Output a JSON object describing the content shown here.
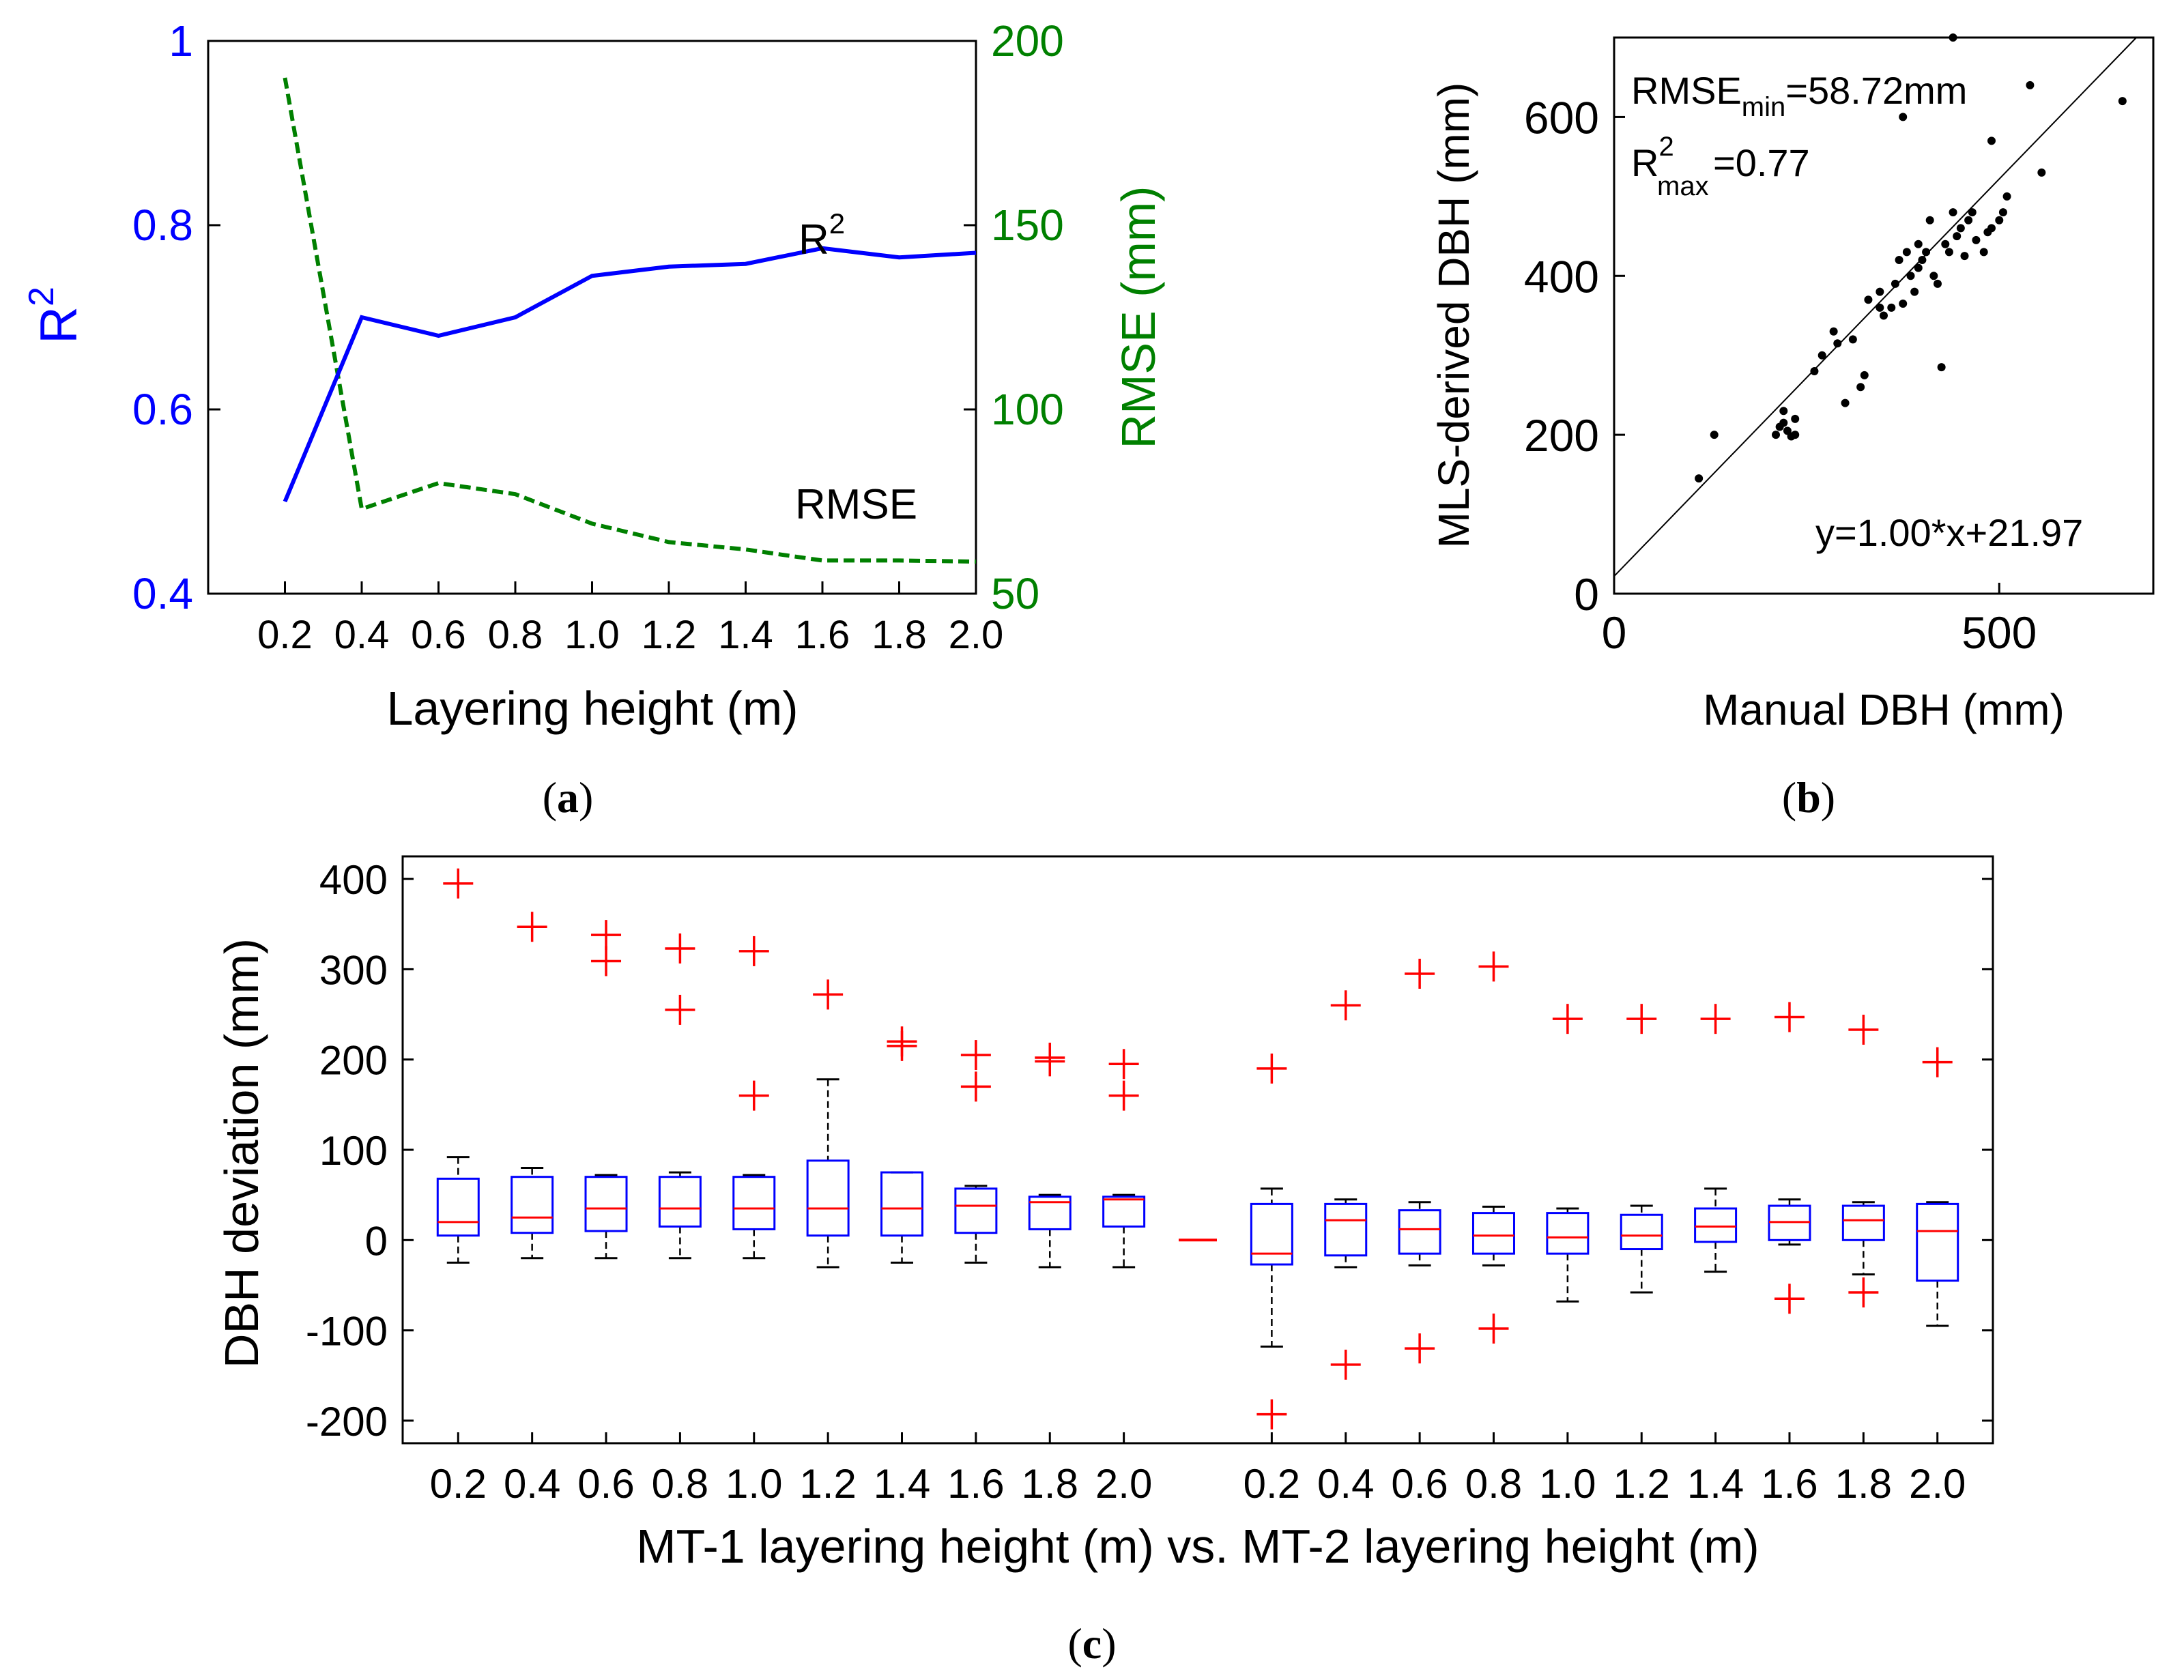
{
  "chart_data": [
    {
      "id": "a",
      "type": "line",
      "panel_label": "a",
      "xlabel": "Layering height (m)",
      "x_ticks": [
        "0.2",
        "0.4",
        "0.6",
        "0.8",
        "1.0",
        "1.2",
        "1.4",
        "1.6",
        "1.8",
        "2.0"
      ],
      "x": [
        0.2,
        0.4,
        0.6,
        0.8,
        1.0,
        1.2,
        1.4,
        1.6,
        1.8,
        2.0
      ],
      "xlim": [
        0.0,
        2.0
      ],
      "ylabel_left": "R",
      "ylabel_left_sup": "2",
      "ylim_left": [
        0.4,
        1.0
      ],
      "yticks_left": [
        "0.4",
        "0.6",
        "0.8",
        "1"
      ],
      "ylabel_right": "RMSE (mm)",
      "ylim_right": [
        50,
        200
      ],
      "yticks_right": [
        "50",
        "100",
        "150",
        "200"
      ],
      "colors": {
        "r2": "#0000ff",
        "rmse": "#008000"
      },
      "series": [
        {
          "name": "R2",
          "label": "R",
          "label_sup": "2",
          "axis": "left",
          "style": "solid",
          "values": [
            0.5,
            0.7,
            0.68,
            0.7,
            0.745,
            0.755,
            0.758,
            0.775,
            0.765,
            0.77
          ]
        },
        {
          "name": "RMSE",
          "label": "RMSE",
          "axis": "right",
          "style": "dashed",
          "values": [
            190,
            73,
            80,
            77,
            69,
            64,
            62,
            59,
            59,
            58.7
          ]
        }
      ]
    },
    {
      "id": "b",
      "type": "scatter",
      "panel_label": "b",
      "xlabel": "Manual DBH (mm)",
      "ylabel": "MLS-derived DBH (mm)",
      "xlim": [
        0,
        700
      ],
      "ylim": [
        0,
        700
      ],
      "x_ticks": [
        "0",
        "500"
      ],
      "y_ticks": [
        "0",
        "200",
        "400",
        "600"
      ],
      "annotation_rmse_main": "RMSE",
      "annotation_rmse_sub": "min",
      "annotation_rmse_value": "=58.72mm",
      "annotation_r2_main": "R",
      "annotation_r2_sup": "2",
      "annotation_r2_sub": "max",
      "annotation_r2_value": "=0.77",
      "equation": "y=1.00*x+21.97",
      "fit_line": {
        "slope": 1.0,
        "intercept": 21.97
      },
      "points": [
        [
          110,
          145
        ],
        [
          130,
          200
        ],
        [
          210,
          200
        ],
        [
          215,
          210
        ],
        [
          220,
          215
        ],
        [
          225,
          205
        ],
        [
          230,
          198
        ],
        [
          235,
          200
        ],
        [
          220,
          230
        ],
        [
          235,
          220
        ],
        [
          260,
          280
        ],
        [
          270,
          300
        ],
        [
          285,
          330
        ],
        [
          300,
          240
        ],
        [
          310,
          320
        ],
        [
          320,
          260
        ],
        [
          325,
          275
        ],
        [
          330,
          370
        ],
        [
          345,
          380
        ],
        [
          350,
          350
        ],
        [
          360,
          360
        ],
        [
          365,
          390
        ],
        [
          370,
          420
        ],
        [
          375,
          365
        ],
        [
          380,
          430
        ],
        [
          385,
          400
        ],
        [
          390,
          380
        ],
        [
          395,
          410
        ],
        [
          400,
          420
        ],
        [
          405,
          430
        ],
        [
          410,
          470
        ],
        [
          415,
          400
        ],
        [
          420,
          390
        ],
        [
          425,
          285
        ],
        [
          430,
          440
        ],
        [
          435,
          430
        ],
        [
          440,
          480
        ],
        [
          445,
          450
        ],
        [
          450,
          460
        ],
        [
          455,
          425
        ],
        [
          460,
          470
        ],
        [
          465,
          480
        ],
        [
          470,
          445
        ],
        [
          480,
          430
        ],
        [
          485,
          455
        ],
        [
          490,
          460
        ],
        [
          500,
          470
        ],
        [
          505,
          480
        ],
        [
          375,
          600
        ],
        [
          440,
          700
        ],
        [
          490,
          570
        ],
        [
          540,
          640
        ],
        [
          555,
          530
        ],
        [
          660,
          620
        ],
        [
          510,
          500
        ],
        [
          395,
          440
        ],
        [
          345,
          360
        ],
        [
          290,
          315
        ]
      ]
    },
    {
      "id": "c",
      "type": "box",
      "panel_label": "c",
      "xlabel": "MT-1 layering height (m) vs. MT-2 layering height (m)",
      "ylabel": "DBH deviation (mm)",
      "ylim": [
        -225,
        425
      ],
      "y_ticks": [
        "-200",
        "-100",
        "0",
        "100",
        "200",
        "300",
        "400"
      ],
      "x_ticks": [
        "0.2",
        "0.4",
        "0.6",
        "0.8",
        "1.0",
        "1.2",
        "1.4",
        "1.6",
        "1.8",
        "2.0",
        "0.2",
        "0.4",
        "0.6",
        "0.8",
        "1.0",
        "1.2",
        "1.4",
        "1.6",
        "1.8",
        "2.0"
      ],
      "separator_value": 0,
      "colors": {
        "box": "#0000ff",
        "median": "#ff0000",
        "whisker": "#000000",
        "outlier": "#ff0000"
      },
      "group1": [
        {
          "category": "0.2",
          "low": -25,
          "q1": 5,
          "median": 20,
          "q3": 68,
          "high": 92,
          "outliers": [
            395
          ]
        },
        {
          "category": "0.4",
          "low": -20,
          "q1": 8,
          "median": 25,
          "q3": 70,
          "high": 80,
          "outliers": [
            347
          ]
        },
        {
          "category": "0.6",
          "low": -20,
          "q1": 10,
          "median": 35,
          "q3": 70,
          "high": 72,
          "outliers": [
            338,
            309
          ]
        },
        {
          "category": "0.8",
          "low": -20,
          "q1": 15,
          "median": 35,
          "q3": 70,
          "high": 75,
          "outliers": [
            323,
            255
          ]
        },
        {
          "category": "1.0",
          "low": -20,
          "q1": 12,
          "median": 35,
          "q3": 70,
          "high": 72,
          "outliers": [
            320,
            160
          ]
        },
        {
          "category": "1.2",
          "low": -30,
          "q1": 5,
          "median": 35,
          "q3": 88,
          "high": 178,
          "outliers": [
            272
          ]
        },
        {
          "category": "1.4",
          "low": -25,
          "q1": 5,
          "median": 35,
          "q3": 75,
          "high": 75,
          "outliers": [
            220,
            215
          ]
        },
        {
          "category": "1.6",
          "low": -25,
          "q1": 8,
          "median": 38,
          "q3": 57,
          "high": 60,
          "outliers": [
            205,
            170
          ]
        },
        {
          "category": "1.8",
          "low": -30,
          "q1": 12,
          "median": 42,
          "q3": 48,
          "high": 50,
          "outliers": [
            202,
            198
          ]
        },
        {
          "category": "2.0",
          "low": -30,
          "q1": 15,
          "median": 45,
          "q3": 48,
          "high": 50,
          "outliers": [
            195,
            160
          ]
        }
      ],
      "group2": [
        {
          "category": "0.2",
          "low": -118,
          "q1": -27,
          "median": -15,
          "q3": 40,
          "high": 57,
          "outliers": [
            190,
            -193
          ]
        },
        {
          "category": "0.4",
          "low": -30,
          "q1": -17,
          "median": 22,
          "q3": 40,
          "high": 45,
          "outliers": [
            260,
            -138
          ]
        },
        {
          "category": "0.6",
          "low": -28,
          "q1": -15,
          "median": 12,
          "q3": 33,
          "high": 42,
          "outliers": [
            295,
            -120
          ]
        },
        {
          "category": "0.8",
          "low": -28,
          "q1": -15,
          "median": 5,
          "q3": 30,
          "high": 37,
          "outliers": [
            303,
            -98
          ]
        },
        {
          "category": "1.0",
          "low": -68,
          "q1": -15,
          "median": 3,
          "q3": 30,
          "high": 35,
          "outliers": [
            245
          ]
        },
        {
          "category": "1.2",
          "low": -58,
          "q1": -10,
          "median": 5,
          "q3": 28,
          "high": 38,
          "outliers": [
            245
          ]
        },
        {
          "category": "1.4",
          "low": -35,
          "q1": -2,
          "median": 15,
          "q3": 35,
          "high": 57,
          "outliers": [
            245
          ]
        },
        {
          "category": "1.6",
          "low": -5,
          "q1": 0,
          "median": 20,
          "q3": 38,
          "high": 45,
          "outliers": [
            247,
            -65
          ]
        },
        {
          "category": "1.8",
          "low": -38,
          "q1": 0,
          "median": 22,
          "q3": 38,
          "high": 42,
          "outliers": [
            233,
            -58
          ]
        },
        {
          "category": "2.0",
          "low": -95,
          "q1": -45,
          "median": 10,
          "q3": 40,
          "high": 42,
          "outliers": [
            197
          ]
        }
      ]
    }
  ]
}
